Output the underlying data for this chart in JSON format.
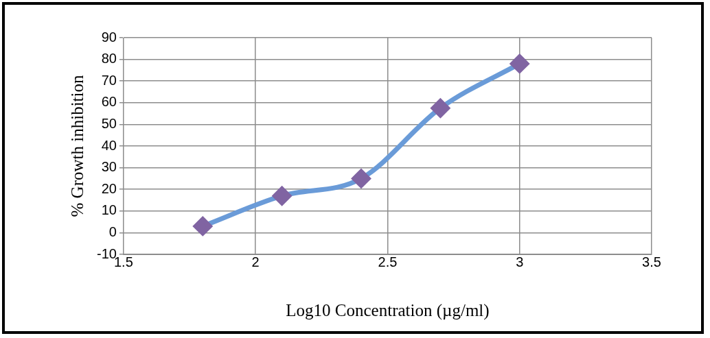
{
  "chart_data": {
    "type": "line",
    "xlabel": "Log10 Concentration (µg/ml)",
    "ylabel": "% Growth inhibition",
    "x": [
      1.8,
      2.1,
      2.4,
      2.7,
      3
    ],
    "series": [
      {
        "color": "#6a9bd8",
        "colors": [
          "#8064a2",
          "#8064a2",
          "#8064a2",
          "#8064a2",
          "#8064a2"
        ],
        "values": [
          3,
          17,
          25,
          57.5,
          78
        ]
      }
    ],
    "xlim": [
      1.5,
      3.5
    ],
    "xticks": [
      1.5,
      2,
      2.5,
      3,
      3.5
    ],
    "ylim": [
      -10,
      90
    ],
    "yticks": [
      -10,
      0,
      10,
      20,
      30,
      40,
      50,
      60,
      70,
      80,
      90
    ],
    "grid": true,
    "legend": false,
    "marker": "diamond",
    "line_style": "solid"
  }
}
